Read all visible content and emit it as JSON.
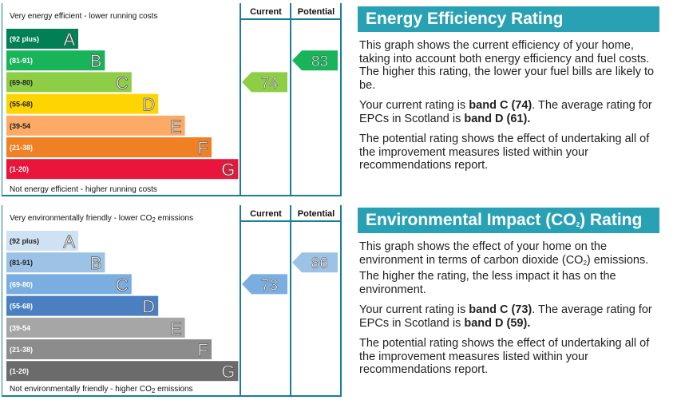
{
  "energy": {
    "top_caption": "Very energy efficient - lower running costs",
    "bottom_caption": "Not energy efficient - higher running costs",
    "current_header": "Current",
    "potential_header": "Potential",
    "heading": "Energy Efficiency Rating",
    "para1": "This graph shows the current efficiency of your home, taking into account both energy efficiency and fuel costs. The higher this rating, the lower your fuel bills are likely to be.",
    "para2_pre": "Your current rating is ",
    "para2_b1": "band C (74)",
    "para2_mid": ". The average rating for EPCs in Scotland is ",
    "para2_b2": "band D (61).",
    "para3": "The potential rating shows the effect of undertaking all of the improvement measures listed within your recommendations report."
  },
  "environment": {
    "top_caption_pre": "Very environmentally friendly - lower CO",
    "top_caption_sub": "2",
    "top_caption_post": " emissions",
    "bottom_caption_pre": "Not environmentally friendly - higher CO",
    "bottom_caption_sub": "2",
    "bottom_caption_post": " emissions",
    "current_header": "Current",
    "potential_header": "Potential",
    "heading_pre": "Environmental Impact (CO",
    "heading_sub": "2",
    "heading_post": ") Rating",
    "para1_pre": "This graph shows the effect of your home on the environment in terms of carbon dioxide (CO",
    "para1_sub": "2",
    "para1_post": ") emissions. The higher the rating, the less impact it has on the environment.",
    "para2_pre": "Your current rating is ",
    "para2_b1": "band C (73)",
    "para2_mid": ". The average rating for EPCs in Scotland is ",
    "para2_b2": "band D (59).",
    "para3": "The potential rating shows the effect of undertaking all of the improvement measures listed within your recommendations report."
  },
  "chart_data": [
    {
      "type": "bar",
      "bands": [
        {
          "range": "(92 plus)",
          "letter": "A",
          "color": "#008054"
        },
        {
          "range": "(81-91)",
          "letter": "B",
          "color": "#19b459"
        },
        {
          "range": "(69-80)",
          "letter": "C",
          "color": "#8dce46"
        },
        {
          "range": "(55-68)",
          "letter": "D",
          "color": "#ffd500"
        },
        {
          "range": "(39-54",
          "letter": "E",
          "color": "#fcaa65"
        },
        {
          "range": "(21-38)",
          "letter": "F",
          "color": "#ef8023"
        },
        {
          "range": "(1-20)",
          "letter": "G",
          "color": "#e9153b"
        }
      ],
      "current": {
        "value": 74,
        "band": "C",
        "color": "#8dce46"
      },
      "potential": {
        "value": 83,
        "band": "B",
        "color": "#19b459"
      }
    },
    {
      "type": "bar",
      "bands": [
        {
          "range": "(92 plus)",
          "letter": "A",
          "color": "#cfe2f3"
        },
        {
          "range": "(81-91)",
          "letter": "B",
          "color": "#9cc2e5"
        },
        {
          "range": "(69-80)",
          "letter": "C",
          "color": "#7aaee0"
        },
        {
          "range": "(55-68)",
          "letter": "D",
          "color": "#4a7fc1"
        },
        {
          "range": "(39-54",
          "letter": "E",
          "color": "#a6a6a6"
        },
        {
          "range": "(21-38)",
          "letter": "F",
          "color": "#8c8c8c"
        },
        {
          "range": "(1-20)",
          "letter": "G",
          "color": "#6b6b6b"
        }
      ],
      "current": {
        "value": 73,
        "band": "C",
        "color": "#7aaee0"
      },
      "potential": {
        "value": 86,
        "band": "B",
        "color": "#9cc2e5"
      }
    }
  ]
}
